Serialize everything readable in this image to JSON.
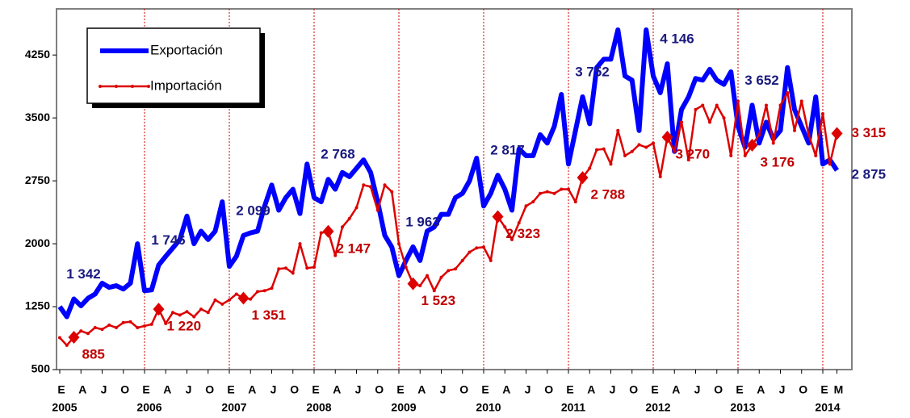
{
  "chart_data": {
    "type": "line",
    "categories": [
      "E",
      null,
      null,
      "A",
      null,
      null,
      "J",
      null,
      null,
      "O",
      null,
      null,
      "E",
      null,
      null,
      "A",
      null,
      null,
      "J",
      null,
      null,
      "O",
      null,
      null,
      "E",
      null,
      null,
      "A",
      null,
      null,
      "J",
      null,
      null,
      "O",
      null,
      null,
      "E",
      null,
      null,
      "A",
      null,
      null,
      "J",
      null,
      null,
      "O",
      null,
      null,
      "E",
      null,
      null,
      "A",
      null,
      null,
      "J",
      null,
      null,
      "O",
      null,
      null,
      "E",
      null,
      null,
      "A",
      null,
      null,
      "J",
      null,
      null,
      "O",
      null,
      null,
      "E",
      null,
      null,
      "A",
      null,
      null,
      "J",
      null,
      null,
      "O",
      null,
      null,
      "E",
      null,
      null,
      "A",
      null,
      null,
      "J",
      null,
      null,
      "O",
      null,
      null,
      "E",
      null,
      null,
      "A",
      null,
      null,
      "J",
      null,
      null,
      "O",
      null,
      null,
      "E",
      null,
      "M"
    ],
    "years": [
      "2005",
      "2006",
      "2007",
      "2008",
      "2009",
      "2010",
      "2011",
      "2012",
      "2013",
      "2014"
    ],
    "series": [
      {
        "name": "Exportación",
        "color": "#0000ff",
        "label_color": "#1a1a80",
        "values": [
          1250,
          1130,
          1342,
          1260,
          1350,
          1400,
          1530,
          1480,
          1500,
          1460,
          1530,
          2000,
          1440,
          1450,
          1746,
          1850,
          1950,
          2050,
          2330,
          2000,
          2150,
          2050,
          2150,
          2500,
          1730,
          1850,
          2099,
          2130,
          2150,
          2450,
          2700,
          2400,
          2550,
          2650,
          2360,
          2950,
          2550,
          2500,
          2768,
          2650,
          2850,
          2800,
          2900,
          3000,
          2850,
          2500,
          2100,
          1960,
          1620,
          1800,
          1963,
          1800,
          2150,
          2200,
          2350,
          2350,
          2550,
          2600,
          2750,
          3020,
          2450,
          2600,
          2817,
          2650,
          2400,
          3130,
          3050,
          3050,
          3300,
          3200,
          3400,
          3780,
          2950,
          3350,
          3752,
          3430,
          4100,
          4200,
          4200,
          4550,
          4000,
          3950,
          3350,
          4550,
          4000,
          3800,
          4146,
          3100,
          3600,
          3750,
          3970,
          3950,
          4080,
          3950,
          3900,
          4050,
          3400,
          3150,
          3652,
          3200,
          3450,
          3250,
          3350,
          4100,
          3600,
          3400,
          3200,
          3750,
          2950,
          3000,
          2875
        ],
        "value_labels": [
          null,
          null,
          "1 342",
          null,
          null,
          null,
          null,
          null,
          null,
          null,
          null,
          null,
          null,
          null,
          "1 746",
          null,
          null,
          null,
          null,
          null,
          null,
          null,
          null,
          null,
          null,
          null,
          "2 099",
          null,
          null,
          null,
          null,
          null,
          null,
          null,
          null,
          null,
          null,
          null,
          "2 768",
          null,
          null,
          null,
          null,
          null,
          null,
          null,
          null,
          null,
          null,
          null,
          "1 963",
          null,
          null,
          null,
          null,
          null,
          null,
          null,
          null,
          null,
          null,
          null,
          "2 817",
          null,
          null,
          null,
          null,
          null,
          null,
          null,
          null,
          null,
          null,
          null,
          "3 752",
          null,
          null,
          null,
          null,
          null,
          null,
          null,
          null,
          null,
          null,
          null,
          "4 146",
          null,
          null,
          null,
          null,
          null,
          null,
          null,
          null,
          null,
          null,
          null,
          "3 652",
          null,
          null,
          null,
          null,
          null,
          null,
          null,
          null,
          null,
          null,
          null,
          "2 875"
        ]
      },
      {
        "name": "Importación",
        "color": "#dd0000",
        "label_color": "#c00000",
        "values": [
          880,
          790,
          885,
          960,
          930,
          1000,
          980,
          1030,
          1000,
          1060,
          1070,
          1000,
          1020,
          1040,
          1220,
          1050,
          1180,
          1150,
          1190,
          1130,
          1220,
          1180,
          1330,
          1280,
          1330,
          1400,
          1351,
          1340,
          1430,
          1440,
          1470,
          1700,
          1710,
          1650,
          2000,
          1710,
          1720,
          2130,
          2147,
          1860,
          2200,
          2300,
          2430,
          2700,
          2680,
          2400,
          2700,
          2620,
          2000,
          1720,
          1523,
          1500,
          1620,
          1440,
          1600,
          1680,
          1700,
          1800,
          1900,
          1950,
          1960,
          1800,
          2323,
          2200,
          2050,
          2250,
          2450,
          2500,
          2600,
          2620,
          2600,
          2650,
          2650,
          2500,
          2788,
          2900,
          3120,
          3130,
          2950,
          3350,
          3050,
          3100,
          3180,
          3150,
          3200,
          2800,
          3270,
          3100,
          3450,
          3000,
          3600,
          3650,
          3450,
          3650,
          3500,
          3050,
          3700,
          3050,
          3176,
          3300,
          3650,
          3200,
          3650,
          3800,
          3350,
          3700,
          3300,
          3050,
          3550,
          2950,
          3315
        ],
        "value_labels": [
          null,
          null,
          "885",
          null,
          null,
          null,
          null,
          null,
          null,
          null,
          null,
          null,
          null,
          null,
          "1 220",
          null,
          null,
          null,
          null,
          null,
          null,
          null,
          null,
          null,
          null,
          null,
          "1 351",
          null,
          null,
          null,
          null,
          null,
          null,
          null,
          null,
          null,
          null,
          null,
          "2 147",
          null,
          null,
          null,
          null,
          null,
          null,
          null,
          null,
          null,
          null,
          null,
          "1 523",
          null,
          null,
          null,
          null,
          null,
          null,
          null,
          null,
          null,
          null,
          null,
          "2 323",
          null,
          null,
          null,
          null,
          null,
          null,
          null,
          null,
          null,
          null,
          null,
          "2 788",
          null,
          null,
          null,
          null,
          null,
          null,
          null,
          null,
          null,
          null,
          null,
          "3 270",
          null,
          null,
          null,
          null,
          null,
          null,
          null,
          null,
          null,
          null,
          null,
          "3 176",
          null,
          null,
          null,
          null,
          null,
          null,
          null,
          null,
          null,
          null,
          null,
          "3 315"
        ]
      }
    ],
    "ylim": [
      500,
      4800
    ],
    "yticks": [
      500,
      1250,
      2000,
      2750,
      3500,
      4250
    ]
  }
}
